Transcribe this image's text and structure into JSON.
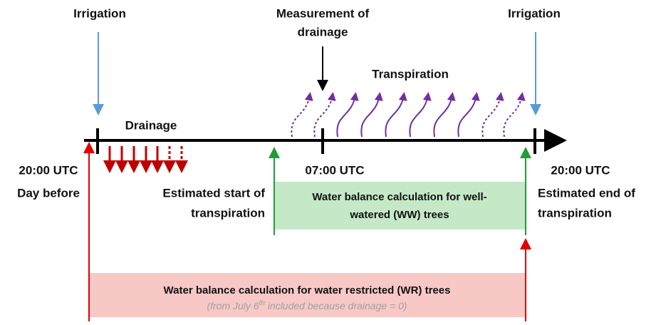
{
  "labels": {
    "irrigation_left": "Irrigation",
    "irrigation_right": "Irrigation",
    "measurement": [
      "Measurement of",
      "drainage"
    ],
    "transpiration": "Transpiration",
    "drainage": "Drainage",
    "time_start": "20:00 UTC",
    "day_before": "Day before",
    "time_mid": "07:00 UTC",
    "time_end": "20:00 UTC",
    "estimated_start": [
      "Estimated start of",
      "transpiration"
    ],
    "estimated_end": [
      "Estimated end of",
      "transpiration"
    ]
  },
  "ww_box": {
    "lines": [
      "Water balance calculation for well-",
      "watered (WW) trees"
    ]
  },
  "wr_box": {
    "title": "Water balance calculation for water restricted (WR) trees",
    "note": {
      "before": "(from July 6",
      "superscript": "th",
      "after": " included because drainage = 0)"
    }
  }
}
